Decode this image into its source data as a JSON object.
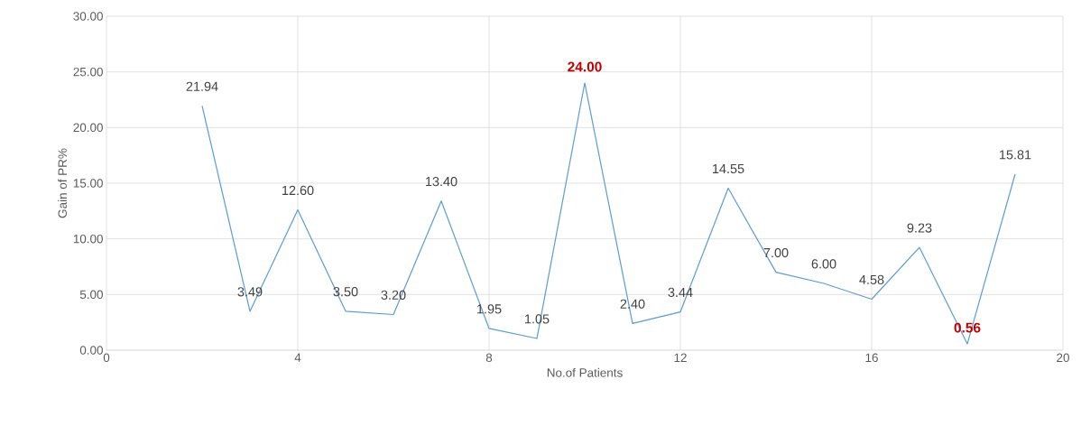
{
  "chart_data": {
    "type": "line",
    "xlabel": "No.of Patients",
    "ylabel": "Gain of PR%",
    "x": [
      2,
      3,
      4,
      5,
      6,
      7,
      8,
      9,
      10,
      11,
      12,
      13,
      14,
      15,
      16,
      17,
      18,
      19
    ],
    "series": [
      {
        "color": "#5b9bd5",
        "values": [
          21.94,
          3.49,
          12.6,
          3.5,
          3.2,
          13.4,
          1.95,
          1.05,
          24.0,
          2.4,
          3.44,
          14.55,
          7.0,
          6.0,
          4.58,
          9.23,
          0.56,
          15.81
        ],
        "value_labels": [
          "21.94",
          "3.49",
          "12.60",
          "3.50",
          "3.20",
          "13.40",
          "1.95",
          "1.05",
          null,
          "2.40",
          "3.44",
          "14.55",
          "7.00",
          "6.00",
          "4.58",
          "9.23",
          null,
          "15.81"
        ]
      }
    ],
    "annotations": [
      {
        "text": "24.00",
        "x": 10,
        "y": 24.0
      },
      {
        "text": "0.56",
        "x": 18,
        "y": 0.56
      }
    ],
    "xlim": [
      0,
      20
    ],
    "xticks": [
      0,
      4,
      8,
      12,
      16,
      20
    ],
    "ylim": [
      0,
      30
    ],
    "yticks": [
      {
        "value": 0,
        "label": "0.00"
      },
      {
        "value": 5,
        "label": "5.00"
      },
      {
        "value": 10,
        "label": "10.00"
      },
      {
        "value": 15,
        "label": "15.00"
      },
      {
        "value": 20,
        "label": "20.00"
      },
      {
        "value": 25,
        "label": "25.00"
      },
      {
        "value": 30,
        "label": "30.00"
      }
    ],
    "grid": true,
    "marker": "none",
    "line_style": "solid",
    "legend": false
  }
}
